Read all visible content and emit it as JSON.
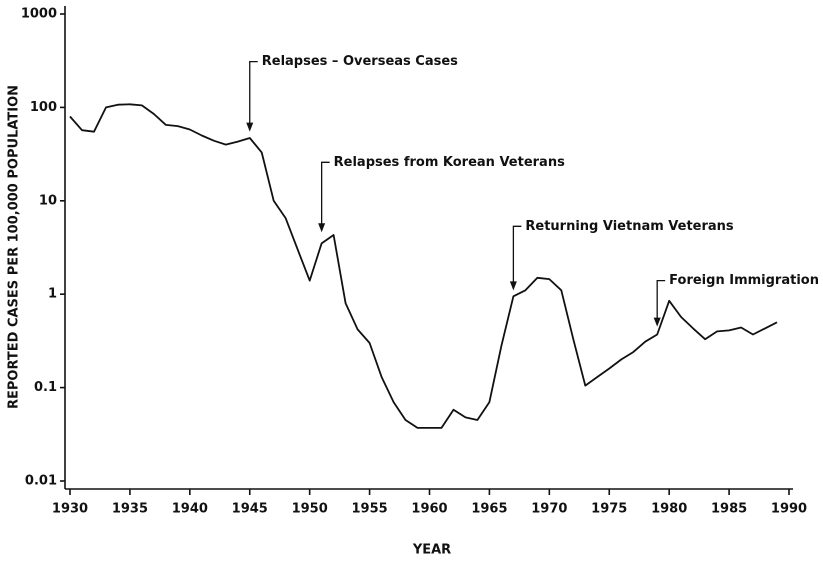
{
  "chart_data": {
    "type": "line",
    "x_label": "YEAR",
    "y_label": "REPORTED CASES PER 100,000 POPULATION",
    "log_y": true,
    "grid": false,
    "color": "#111111",
    "xlim": [
      1930,
      1990
    ],
    "ylim": [
      0.01,
      1000
    ],
    "xticks": [
      1930,
      1935,
      1940,
      1945,
      1950,
      1955,
      1960,
      1965,
      1970,
      1975,
      1980,
      1985,
      1990
    ],
    "yticks": [
      0.01,
      0.1,
      1,
      10,
      100,
      1000
    ],
    "x": [
      1930,
      1931,
      1932,
      1933,
      1934,
      1935,
      1936,
      1937,
      1938,
      1939,
      1940,
      1941,
      1942,
      1943,
      1944,
      1945,
      1946,
      1947,
      1948,
      1949,
      1950,
      1951,
      1952,
      1953,
      1954,
      1955,
      1956,
      1957,
      1958,
      1959,
      1960,
      1961,
      1962,
      1963,
      1964,
      1965,
      1966,
      1967,
      1968,
      1969,
      1970,
      1971,
      1972,
      1973,
      1974,
      1975,
      1976,
      1977,
      1978,
      1979,
      1980,
      1981,
      1982,
      1983,
      1984,
      1985,
      1986,
      1987,
      1988,
      1989
    ],
    "values": [
      80,
      57,
      55,
      100,
      107,
      108,
      105,
      85,
      65,
      63,
      58,
      50,
      44,
      40,
      43,
      47,
      33,
      10,
      6.5,
      3,
      1.4,
      3.5,
      4.3,
      0.8,
      0.42,
      0.3,
      0.13,
      0.07,
      0.045,
      0.037,
      0.037,
      0.037,
      0.058,
      0.048,
      0.045,
      0.07,
      0.28,
      0.95,
      1.1,
      1.5,
      1.45,
      1.1,
      0.33,
      0.105,
      0.13,
      0.16,
      0.2,
      0.24,
      0.31,
      0.37,
      0.85,
      0.57,
      0.43,
      0.33,
      0.4,
      0.41,
      0.44,
      0.37,
      0.43,
      0.5
    ],
    "annotations": [
      {
        "text": "Relapses – Overseas Cases",
        "x": 1945,
        "y": 55
      },
      {
        "text": "Relapses from Korean Veterans",
        "x": 1951,
        "y": 4.6
      },
      {
        "text": "Returning Vietnam Veterans",
        "x": 1967,
        "y": 1.1
      },
      {
        "text": "Foreign Immigration",
        "x": 1979,
        "y": 0.45
      }
    ]
  }
}
